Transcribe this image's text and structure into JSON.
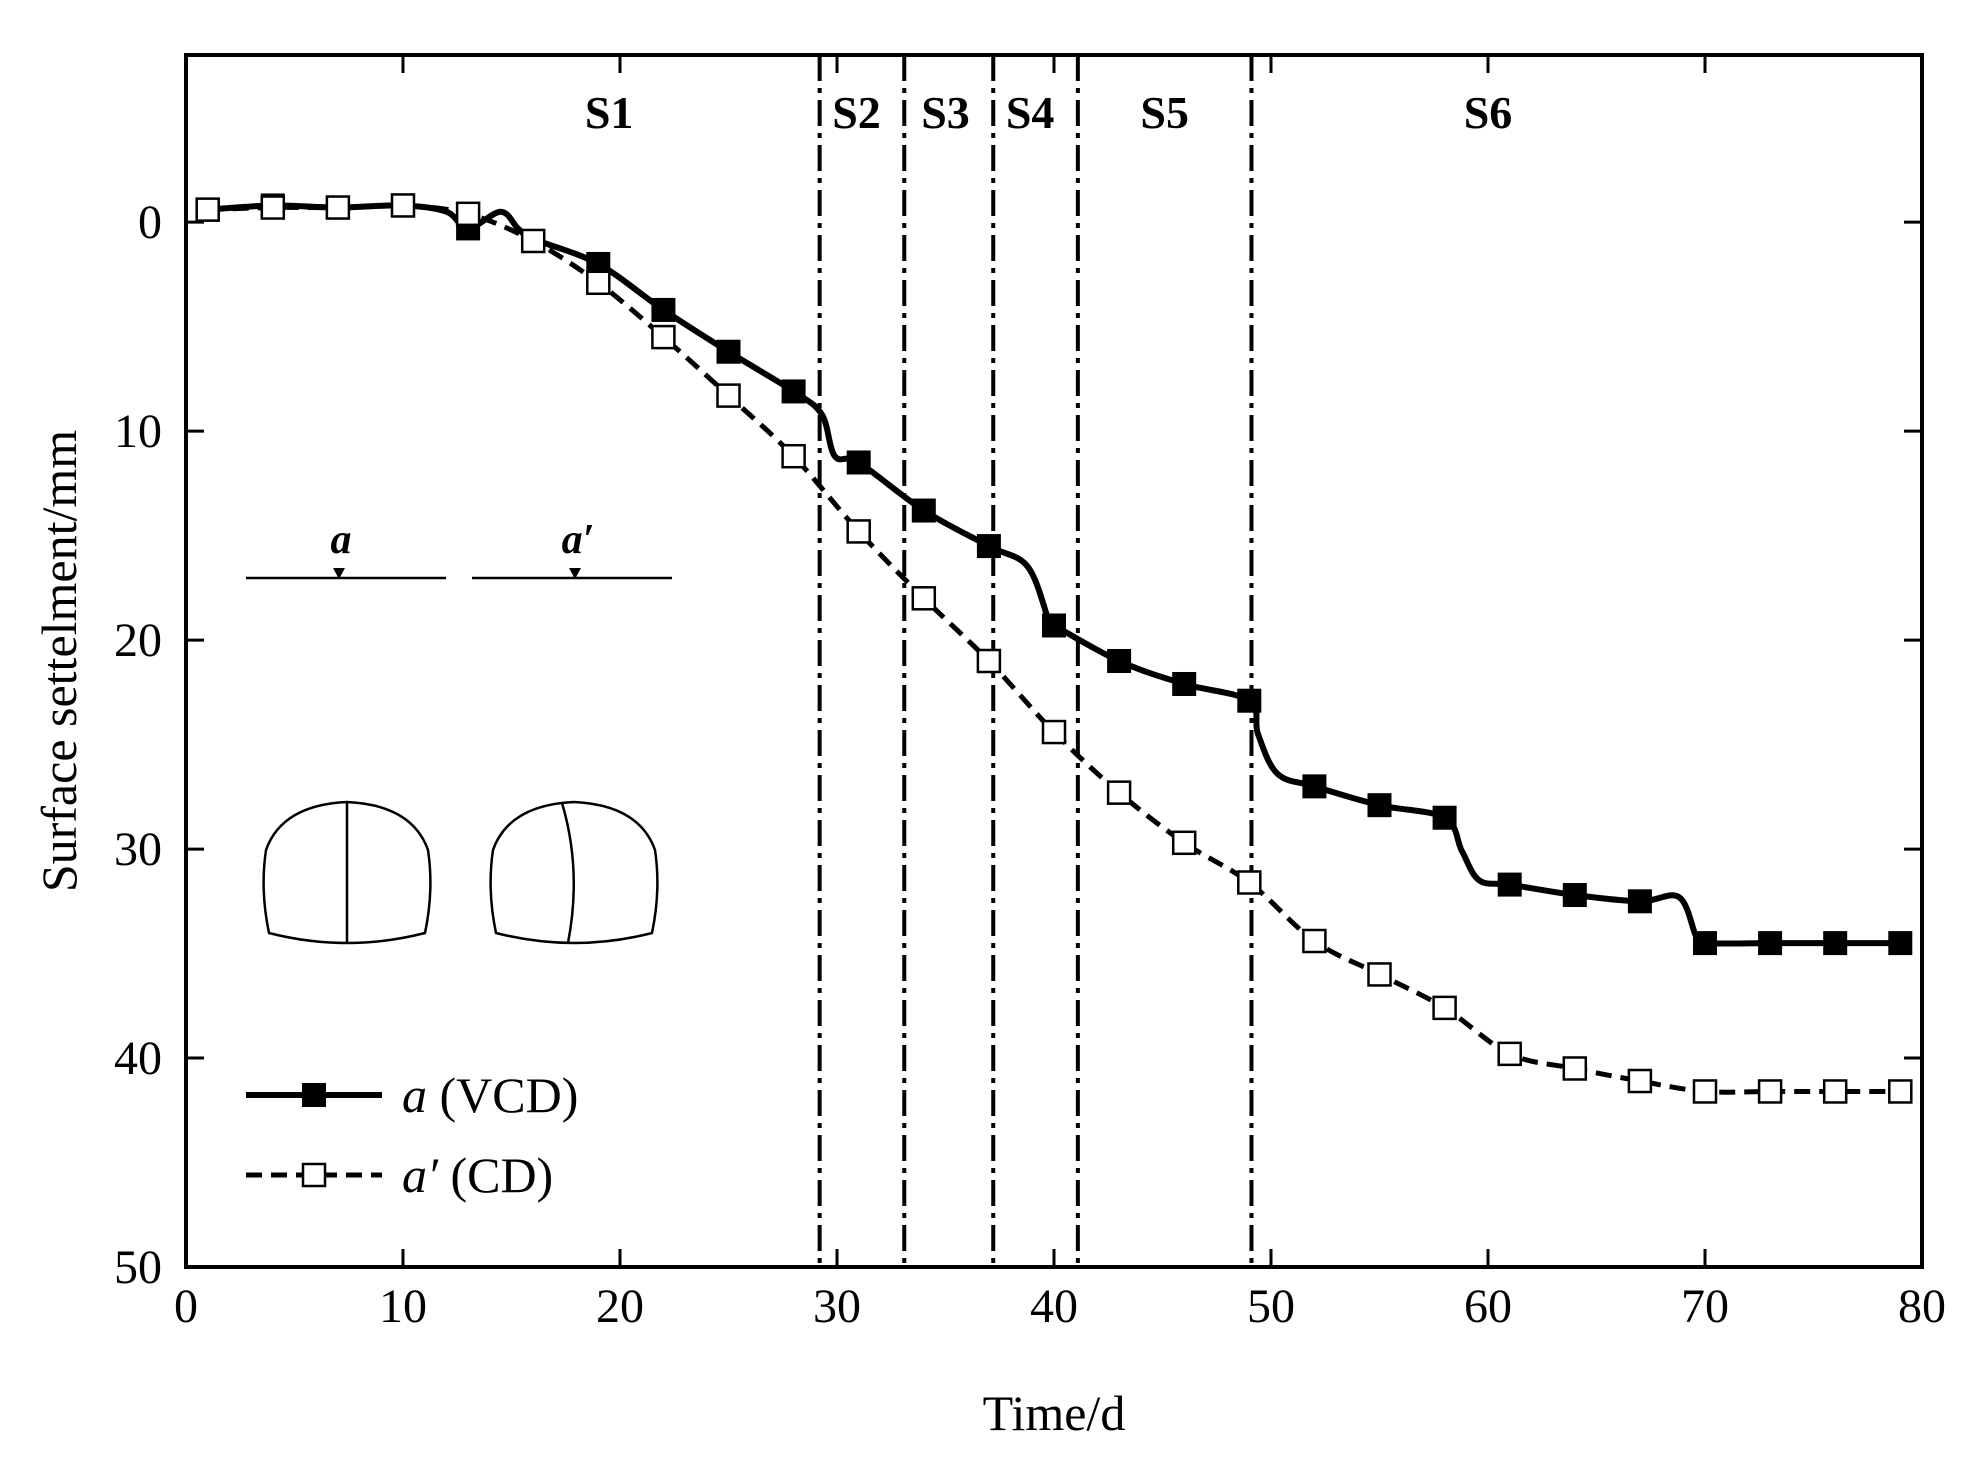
{
  "chart_data": {
    "type": "line",
    "xlabel": "Time/d",
    "ylabel": "Surface settelment/mm",
    "xlim": [
      0,
      80
    ],
    "ylim": [
      -8,
      50
    ],
    "y_inverted": true,
    "xticks": [
      0,
      10,
      20,
      30,
      40,
      50,
      60,
      70,
      80
    ],
    "yticks": [
      0,
      10,
      20,
      30,
      40,
      50
    ],
    "grid": false,
    "legend_position": "bottom-left",
    "stage_boundaries": [
      29.2,
      33.1,
      37.2,
      41.1,
      49.1
    ],
    "stages": [
      {
        "label": "S1",
        "x": 19.5
      },
      {
        "label": "S2",
        "x": 30.9
      },
      {
        "label": "S3",
        "x": 35.0
      },
      {
        "label": "S4",
        "x": 38.9
      },
      {
        "label": "S5",
        "x": 45.1
      },
      {
        "label": "S6",
        "x": 60.0
      }
    ],
    "series": [
      {
        "name": "a (VCD)",
        "legend_main": "a",
        "legend_suffix": " (VCD)",
        "style": "solid",
        "marker": "filled-square",
        "color": "#000000",
        "markers": {
          "x": [
            1,
            4,
            7,
            10,
            13,
            19,
            22,
            25,
            28,
            31,
            34,
            37,
            40,
            43,
            46,
            49,
            52,
            55,
            58,
            61,
            64,
            67,
            70,
            73,
            76,
            79
          ],
          "y": [
            -0.6,
            -0.8,
            -0.7,
            -0.8,
            0.3,
            2.0,
            4.2,
            6.2,
            8.1,
            11.5,
            13.8,
            15.5,
            19.3,
            21.0,
            22.1,
            22.9,
            27.0,
            27.9,
            28.5,
            31.7,
            32.2,
            32.5,
            34.5,
            34.5,
            34.5,
            34.5
          ]
        },
        "curve": {
          "x": [
            1,
            4,
            7,
            10,
            12,
            13,
            14.5,
            15.3,
            16,
            19,
            22,
            25,
            28,
            29.3,
            29.9,
            31,
            34,
            37,
            38.8,
            39.8,
            40,
            43,
            46,
            49,
            49.4,
            50.3,
            52,
            55,
            58,
            58.8,
            59.6,
            61,
            64,
            67,
            68.8,
            69.6,
            70,
            73,
            76,
            79
          ],
          "y": [
            -0.6,
            -0.8,
            -0.7,
            -0.8,
            -0.5,
            0.3,
            -0.5,
            0.3,
            0.8,
            2.0,
            4.2,
            6.2,
            8.1,
            9.2,
            11.2,
            11.5,
            13.8,
            15.5,
            16.5,
            19.2,
            19.3,
            21.0,
            22.1,
            22.9,
            24.5,
            26.4,
            27.0,
            27.9,
            28.5,
            30.1,
            31.5,
            31.7,
            32.2,
            32.5,
            32.3,
            34.2,
            34.5,
            34.5,
            34.5,
            34.5
          ]
        }
      },
      {
        "name": "a′ (CD)",
        "legend_main": "a′",
        "legend_suffix": " (CD)",
        "style": "dashed",
        "marker": "open-square",
        "color": "#000000",
        "markers": {
          "x": [
            1,
            4,
            7,
            10,
            13,
            16,
            19,
            22,
            25,
            28,
            31,
            34,
            37,
            40,
            43,
            46,
            49,
            52,
            55,
            58,
            61,
            64,
            67,
            70,
            73,
            76,
            79
          ],
          "y": [
            -0.6,
            -0.7,
            -0.7,
            -0.8,
            -0.4,
            0.9,
            2.9,
            5.5,
            8.3,
            11.2,
            14.8,
            18.0,
            21.0,
            24.4,
            27.3,
            29.7,
            31.6,
            34.4,
            36.0,
            37.6,
            39.8,
            40.5,
            41.1,
            41.6,
            41.6,
            41.6,
            41.6
          ]
        }
      }
    ],
    "inset": {
      "labels": [
        "a",
        "a′"
      ]
    }
  }
}
